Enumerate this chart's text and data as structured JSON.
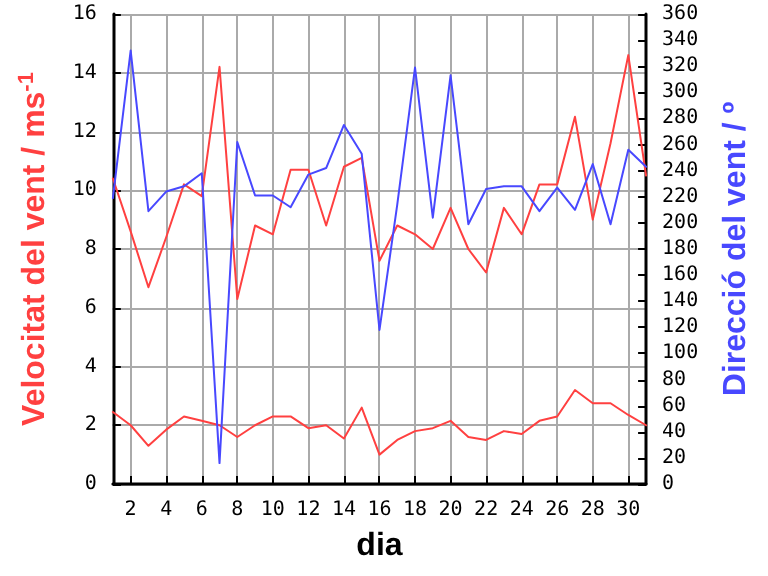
{
  "chart_data": {
    "type": "line",
    "xlabel": "dia",
    "ylabel": "Velocitat del vent / ms$^{-1}$",
    "y2label": "Direcció del vent / º",
    "x": [
      1,
      2,
      3,
      4,
      5,
      6,
      7,
      8,
      9,
      10,
      11,
      12,
      13,
      14,
      15,
      16,
      17,
      18,
      19,
      20,
      21,
      22,
      23,
      24,
      25,
      26,
      27,
      28,
      29,
      30,
      31
    ],
    "series": [
      {
        "color": "#ff4040",
        "values": [
          10.4,
          8.6,
          6.7,
          8.4,
          10.2,
          9.8,
          14.2,
          6.3,
          8.8,
          8.5,
          10.7,
          10.7,
          8.8,
          10.8,
          11.1,
          7.6,
          8.8,
          8.5,
          8.0,
          9.4,
          8.0,
          7.2,
          9.4,
          8.5,
          10.2,
          10.2,
          12.5,
          9.0,
          11.6,
          14.6,
          10.5
        ]
      },
      {
        "color": "#ff4040",
        "values": [
          2.45,
          2.0,
          1.3,
          1.85,
          2.3,
          2.15,
          2.0,
          1.6,
          2.0,
          2.3,
          2.3,
          1.9,
          2.0,
          1.55,
          2.6,
          1.0,
          1.5,
          1.8,
          1.9,
          2.15,
          1.6,
          1.5,
          1.8,
          1.7,
          2.15,
          2.3,
          3.2,
          2.75,
          2.75,
          2.35,
          2.0
        ]
      },
      {
        "color": "#4848ff",
        "axis": "y2",
        "values": [
          219,
          332,
          209,
          224,
          228,
          238,
          16,
          262,
          221,
          221,
          212,
          237,
          242,
          275,
          253,
          118,
          214,
          319,
          204,
          313,
          199,
          226,
          228,
          228,
          209,
          227,
          210,
          245,
          199,
          256,
          243
        ]
      }
    ],
    "xlim": [
      1,
      31
    ],
    "xticks": [
      2,
      4,
      6,
      8,
      10,
      12,
      14,
      16,
      18,
      20,
      22,
      24,
      26,
      28,
      30
    ],
    "ylim": [
      0,
      16
    ],
    "yticks": [
      0,
      2,
      4,
      6,
      8,
      10,
      12,
      14,
      16
    ],
    "y2lim": [
      0,
      360
    ],
    "y2ticks": [
      0,
      20,
      40,
      60,
      80,
      100,
      120,
      140,
      160,
      180,
      200,
      220,
      240,
      260,
      280,
      300,
      320,
      340,
      360
    ],
    "grid": true,
    "marker": "none",
    "line_style": "solid"
  }
}
